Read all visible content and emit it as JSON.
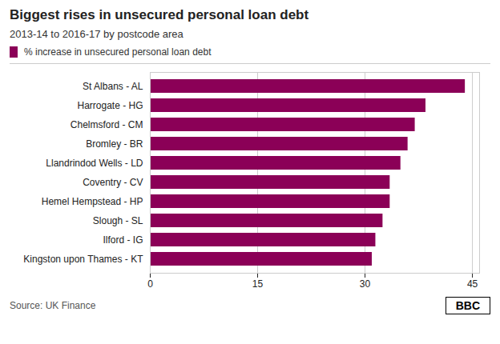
{
  "chart_data": {
    "type": "bar",
    "orientation": "horizontal",
    "title": "Biggest rises in unsecured personal loan debt",
    "subtitle": "2013-14 to 2016-17 by postcode area",
    "source": "Source: UK Finance",
    "annotations": [
      "BBC"
    ],
    "categories": [
      "Kingston upon Thames - KT",
      "Ilford - IG",
      "Slough - SL",
      "Hemel Hempstead - HP",
      "Coventry - CV",
      "Llandrindod Wells - LD",
      "Bromley - BR",
      "Chelmsford - CM",
      "Harrogate - HG",
      "St Albans - AL"
    ],
    "series": [
      {
        "name": "% increase in unsecured personal loan debt",
        "color": "#8B0057",
        "values": [
          31.0,
          31.5,
          32.5,
          33.5,
          33.5,
          35.0,
          36.0,
          37.0,
          38.5,
          44.0
        ]
      }
    ],
    "xlim": [
      0,
      46
    ],
    "xticks": [
      0,
      15,
      30,
      45
    ],
    "grid": true
  }
}
